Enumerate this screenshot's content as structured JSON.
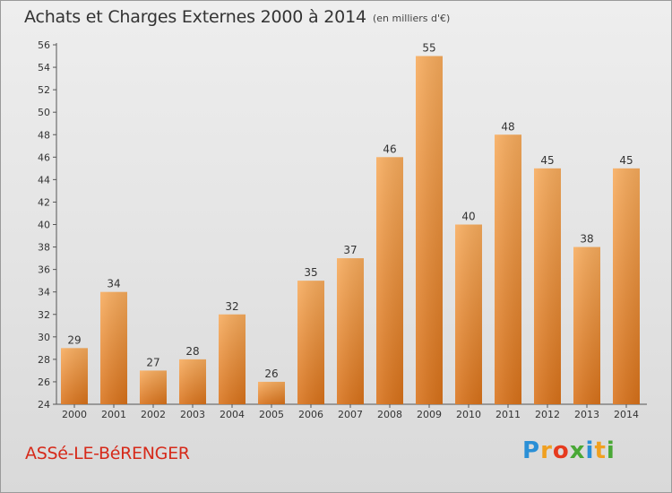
{
  "header": {
    "title": "Achats et Charges Externes 2000 à 2014",
    "unit": "(en milliers d'€)"
  },
  "footer": {
    "town": "ASSé-LE-BéRENGER",
    "logo": "Proxiti"
  },
  "colors": {
    "bar_light": "#f6a857",
    "bar_dark": "#d9741c",
    "town": "#d62a1a"
  },
  "chart_data": {
    "type": "bar",
    "title": "Achats et Charges Externes 2000 à 2014",
    "subtitle": "(en milliers d'€)",
    "categories": [
      "2000",
      "2001",
      "2002",
      "2003",
      "2004",
      "2005",
      "2006",
      "2007",
      "2008",
      "2009",
      "2010",
      "2011",
      "2012",
      "2013",
      "2014"
    ],
    "values": [
      29,
      34,
      27,
      28,
      32,
      26,
      35,
      37,
      46,
      55,
      40,
      48,
      45,
      38,
      45
    ],
    "ylim": [
      24,
      56
    ],
    "yticks": [
      24,
      26,
      28,
      30,
      32,
      34,
      36,
      38,
      40,
      42,
      44,
      46,
      48,
      50,
      52,
      54,
      56
    ],
    "grid": false,
    "xlabel": "",
    "ylabel": ""
  }
}
